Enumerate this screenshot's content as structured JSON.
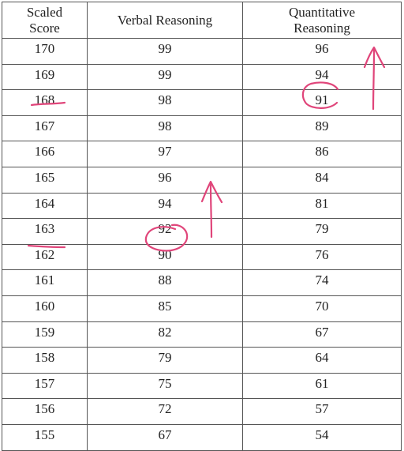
{
  "table": {
    "headers": {
      "scaled_score": [
        "Scaled",
        "Score"
      ],
      "verbal": "Verbal Reasoning",
      "quantitative": [
        "Quantitative",
        "Reasoning"
      ]
    },
    "rows": [
      {
        "scaled": "170",
        "verbal": "99",
        "quant": "96"
      },
      {
        "scaled": "169",
        "verbal": "99",
        "quant": "94"
      },
      {
        "scaled": "168",
        "verbal": "98",
        "quant": "91"
      },
      {
        "scaled": "167",
        "verbal": "98",
        "quant": "89"
      },
      {
        "scaled": "166",
        "verbal": "97",
        "quant": "86"
      },
      {
        "scaled": "165",
        "verbal": "96",
        "quant": "84"
      },
      {
        "scaled": "164",
        "verbal": "94",
        "quant": "81"
      },
      {
        "scaled": "163",
        "verbal": "92",
        "quant": "79"
      },
      {
        "scaled": "162",
        "verbal": "90",
        "quant": "76"
      },
      {
        "scaled": "161",
        "verbal": "88",
        "quant": "74"
      },
      {
        "scaled": "160",
        "verbal": "85",
        "quant": "70"
      },
      {
        "scaled": "159",
        "verbal": "82",
        "quant": "67"
      },
      {
        "scaled": "158",
        "verbal": "79",
        "quant": "64"
      },
      {
        "scaled": "157",
        "verbal": "75",
        "quant": "61"
      },
      {
        "scaled": "156",
        "verbal": "72",
        "quant": "57"
      },
      {
        "scaled": "155",
        "verbal": "67",
        "quant": "54"
      }
    ]
  },
  "annotation_color": "#e0457a"
}
